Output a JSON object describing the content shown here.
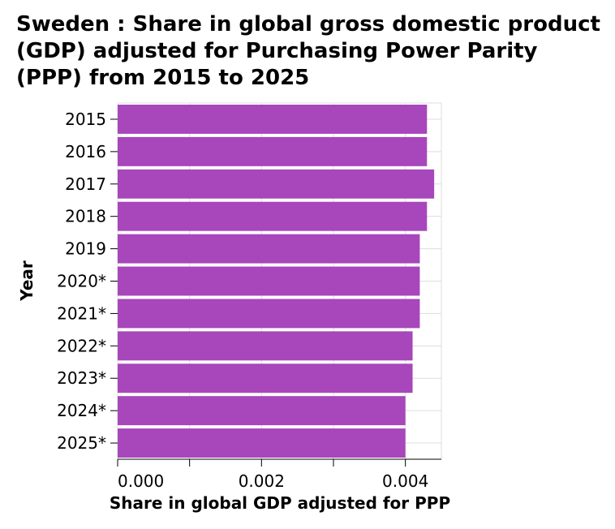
{
  "chart_data": {
    "type": "bar",
    "orientation": "horizontal",
    "title": "Sweden : Share in global gross domestic product (GDP) adjusted for Purchasing Power Parity (PPP) from 2015 to 2025",
    "xlabel": "Share in global GDP adjusted for PPP",
    "ylabel": "Year",
    "categories": [
      "2015",
      "2016",
      "2017",
      "2018",
      "2019",
      "2020*",
      "2021*",
      "2022*",
      "2023*",
      "2024*",
      "2025*"
    ],
    "values": [
      0.0043,
      0.0043,
      0.0044,
      0.0043,
      0.0042,
      0.0042,
      0.0042,
      0.0041,
      0.0041,
      0.004,
      0.004
    ],
    "xlim": [
      0,
      0.0045
    ],
    "x_ticks": [
      0.0,
      0.002,
      0.004
    ],
    "x_tick_labels": [
      "0.000",
      "0.002",
      "0.004"
    ],
    "grid": true,
    "bar_color": "#a846bb",
    "grid_color": "#dddddd"
  }
}
